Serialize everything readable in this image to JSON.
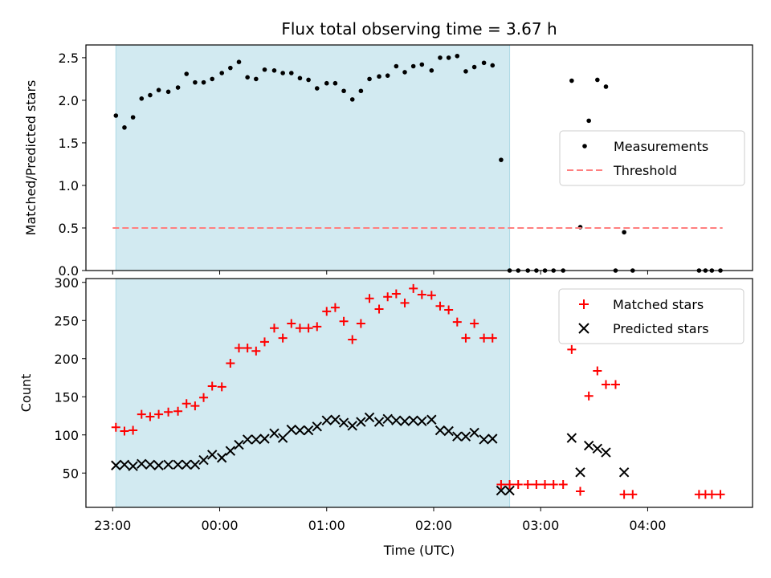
{
  "chart_data": {
    "type": "scatter",
    "title": "Flux total observing time = 3.67 h",
    "xlabel": "Time (UTC)",
    "x_tick_labels": [
      "23:00",
      "00:00",
      "01:00",
      "02:00",
      "03:00",
      "04:00"
    ],
    "x_ticks_hours": [
      0,
      1,
      2,
      3,
      4,
      5
    ],
    "xlim_hours": [
      -0.25,
      5.98
    ],
    "shaded_interval_hours": [
      0.03,
      3.71
    ],
    "shade_color": "#add8e6",
    "panels": [
      {
        "ylabel": "Matched/Predicted stars",
        "ylim": [
          0,
          2.65
        ],
        "y_ticks": [
          0.0,
          0.5,
          1.0,
          1.5,
          2.0,
          2.5
        ],
        "y_tick_labels": [
          "0.0",
          "0.5",
          "1.0",
          "1.5",
          "2.0",
          "2.5"
        ],
        "legend_placement": "center-right",
        "series": [
          {
            "name": "Measurements",
            "marker": "dot",
            "color": "#000000",
            "x": [
              0.03,
              0.11,
              0.19,
              0.27,
              0.35,
              0.43,
              0.52,
              0.61,
              0.69,
              0.77,
              0.85,
              0.93,
              1.02,
              1.1,
              1.18,
              1.26,
              1.34,
              1.42,
              1.51,
              1.59,
              1.67,
              1.75,
              1.83,
              1.91,
              2.0,
              2.08,
              2.16,
              2.24,
              2.32,
              2.4,
              2.49,
              2.57,
              2.65,
              2.73,
              2.81,
              2.89,
              2.98,
              3.06,
              3.14,
              3.22,
              3.3,
              3.38,
              3.47,
              3.55,
              3.63,
              3.71,
              3.79,
              3.88,
              3.96,
              4.04,
              4.12,
              4.21,
              4.29,
              4.37,
              4.45,
              4.53,
              4.61,
              4.7,
              4.78,
              4.86,
              5.48,
              5.54,
              5.6,
              5.68
            ],
            "y": [
              1.82,
              1.68,
              1.8,
              2.02,
              2.06,
              2.12,
              2.1,
              2.15,
              2.31,
              2.21,
              2.21,
              2.25,
              2.32,
              2.38,
              2.45,
              2.27,
              2.25,
              2.36,
              2.35,
              2.32,
              2.32,
              2.26,
              2.24,
              2.14,
              2.2,
              2.2,
              2.11,
              2.01,
              2.11,
              2.25,
              2.28,
              2.29,
              2.4,
              2.33,
              2.4,
              2.42,
              2.35,
              2.5,
              2.5,
              2.52,
              2.34,
              2.39,
              2.44,
              2.41,
              1.3,
              0.0,
              0.0,
              0.0,
              0.0,
              0.0,
              0.0,
              0.0,
              2.23,
              0.51,
              1.76,
              2.24,
              2.16,
              0.0,
              0.45,
              0.0,
              0.0,
              0.0,
              0.0,
              0.0
            ]
          },
          {
            "name": "Threshold",
            "marker": "dashed-line",
            "color": "#ff7f7f",
            "x": [
              0.0,
              5.7
            ],
            "y": [
              0.5,
              0.5
            ]
          }
        ]
      },
      {
        "ylabel": "Count",
        "ylim": [
          5,
          305
        ],
        "y_ticks": [
          50,
          100,
          150,
          200,
          250,
          300
        ],
        "y_tick_labels": [
          "50",
          "100",
          "150",
          "200",
          "250",
          "300"
        ],
        "legend_placement": "top-right",
        "series": [
          {
            "name": "Matched stars",
            "marker": "plus",
            "color": "#ff0000",
            "x": [
              0.03,
              0.11,
              0.19,
              0.27,
              0.35,
              0.43,
              0.52,
              0.61,
              0.69,
              0.77,
              0.85,
              0.93,
              1.02,
              1.1,
              1.18,
              1.26,
              1.34,
              1.42,
              1.51,
              1.59,
              1.67,
              1.75,
              1.83,
              1.91,
              2.0,
              2.08,
              2.16,
              2.24,
              2.32,
              2.4,
              2.49,
              2.57,
              2.65,
              2.73,
              2.81,
              2.89,
              2.98,
              3.06,
              3.14,
              3.22,
              3.3,
              3.38,
              3.47,
              3.55,
              3.63,
              3.71,
              3.79,
              3.88,
              3.96,
              4.04,
              4.12,
              4.21,
              4.29,
              4.37,
              4.45,
              4.53,
              4.61,
              4.7,
              4.78,
              4.86,
              5.48,
              5.54,
              5.6,
              5.68
            ],
            "y": [
              110,
              105,
              106,
              127,
              124,
              127,
              130,
              131,
              141,
              138,
              149,
              164,
              163,
              194,
              214,
              214,
              210,
              222,
              240,
              227,
              246,
              240,
              240,
              242,
              262,
              267,
              249,
              225,
              246,
              279,
              265,
              281,
              285,
              273,
              292,
              284,
              283,
              269,
              264,
              248,
              227,
              246,
              227,
              227,
              35,
              35,
              35,
              35,
              35,
              35,
              35,
              35,
              212,
              26,
              151,
              184,
              166,
              166,
              22,
              22,
              22,
              22,
              22,
              22
            ]
          },
          {
            "name": "Predicted stars",
            "marker": "x",
            "color": "#000000",
            "x": [
              0.03,
              0.11,
              0.19,
              0.27,
              0.35,
              0.43,
              0.52,
              0.61,
              0.69,
              0.77,
              0.85,
              0.93,
              1.02,
              1.1,
              1.18,
              1.26,
              1.34,
              1.42,
              1.51,
              1.59,
              1.67,
              1.75,
              1.83,
              1.91,
              2.0,
              2.08,
              2.16,
              2.24,
              2.32,
              2.4,
              2.49,
              2.57,
              2.65,
              2.73,
              2.81,
              2.89,
              2.98,
              3.06,
              3.14,
              3.22,
              3.3,
              3.38,
              3.47,
              3.55,
              3.63,
              3.71,
              4.29,
              4.37,
              4.45,
              4.53,
              4.61,
              4.78
            ],
            "y": [
              60,
              61,
              59,
              62,
              61,
              60,
              61,
              61,
              61,
              61,
              67,
              74,
              70,
              79,
              87,
              94,
              94,
              95,
              102,
              96,
              107,
              106,
              106,
              111,
              119,
              120,
              116,
              112,
              117,
              123,
              117,
              121,
              119,
              118,
              119,
              118,
              120,
              106,
              105,
              98,
              98,
              103,
              94,
              95,
              27,
              27,
              96,
              51,
              86,
              82,
              77,
              51
            ]
          }
        ]
      }
    ]
  }
}
